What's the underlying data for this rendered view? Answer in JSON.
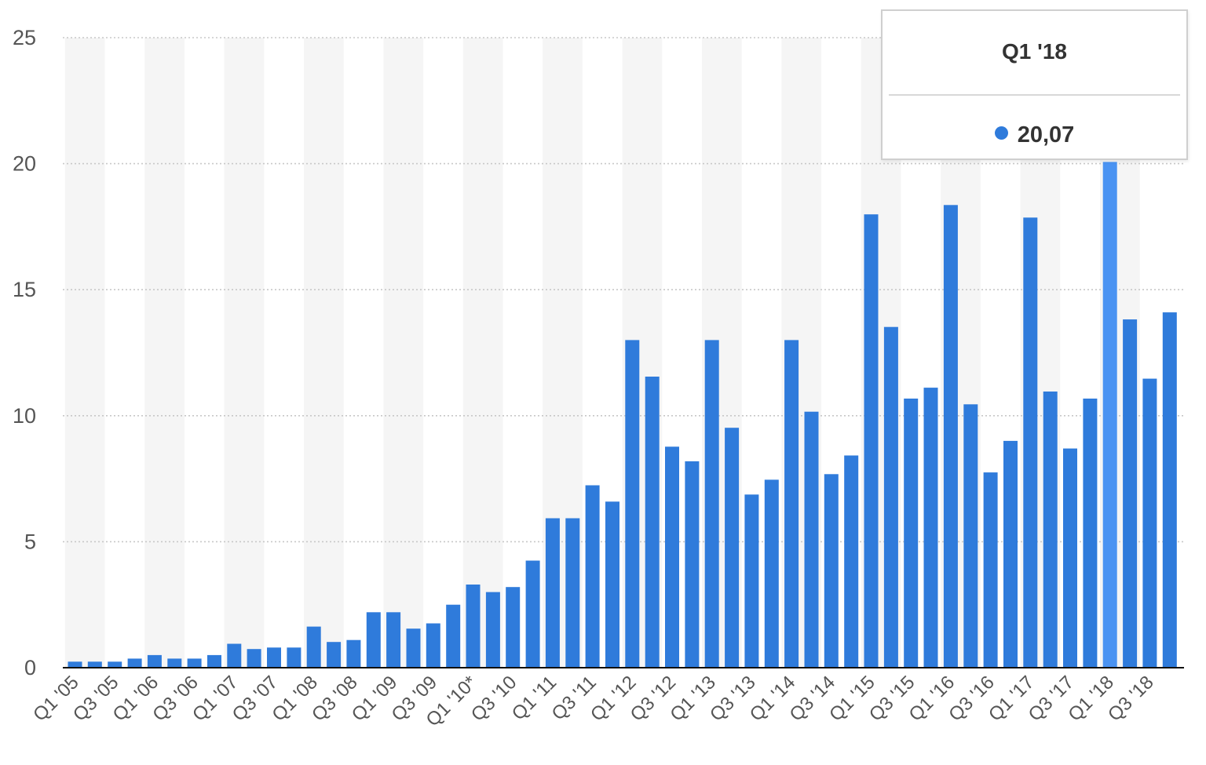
{
  "chart_data": {
    "type": "bar",
    "categories": [
      "Q1 '05",
      "Q2 '05",
      "Q3 '05",
      "Q4 '05",
      "Q1 '06",
      "Q2 '06",
      "Q3 '06",
      "Q4 '06",
      "Q1 '07",
      "Q2 '07",
      "Q3 '07",
      "Q4 '07",
      "Q1 '08",
      "Q2 '08",
      "Q3 '08",
      "Q4 '08",
      "Q1 '09",
      "Q2 '09",
      "Q3 '09",
      "Q4 '09",
      "Q1 '10*",
      "Q2 '10",
      "Q3 '10",
      "Q4 '10",
      "Q1 '11",
      "Q2 '11",
      "Q3 '11",
      "Q4 '11",
      "Q1 '12",
      "Q2 '12",
      "Q3 '12",
      "Q4 '12",
      "Q1 '13",
      "Q2 '13",
      "Q3 '13",
      "Q4 '13",
      "Q1 '14",
      "Q2 '14",
      "Q3 '14",
      "Q4 '14",
      "Q1 '15",
      "Q2 '15",
      "Q3 '15",
      "Q4 '15",
      "Q1 '16",
      "Q2 '16",
      "Q3 '16",
      "Q4 '16",
      "Q1 '17",
      "Q2 '17",
      "Q3 '17",
      "Q4 '17",
      "Q1 '18",
      "Q2 '18",
      "Q3 '18",
      "Q4 '18"
    ],
    "tick_labels": [
      "Q1 '05",
      "Q3 '05",
      "Q1 '06",
      "Q3 '06",
      "Q1 '07",
      "Q3 '07",
      "Q1 '08",
      "Q3 '08",
      "Q1 '09",
      "Q3 '09",
      "Q1 '10*",
      "Q3 '10",
      "Q1 '11",
      "Q3 '11",
      "Q1 '12",
      "Q3 '12",
      "Q1 '13",
      "Q3 '13",
      "Q1 '14",
      "Q3 '14",
      "Q1 '15",
      "Q3 '15",
      "Q1 '16",
      "Q3 '16",
      "Q1 '17",
      "Q3 '17",
      "Q1 '18",
      "Q3 '18"
    ],
    "values": [
      0.24,
      0.24,
      0.24,
      0.36,
      0.5,
      0.36,
      0.36,
      0.5,
      0.95,
      0.74,
      0.8,
      0.8,
      1.63,
      1.02,
      1.1,
      2.2,
      2.2,
      1.55,
      1.76,
      2.5,
      3.3,
      3.0,
      3.2,
      4.25,
      5.93,
      5.93,
      7.24,
      6.59,
      13.0,
      11.55,
      8.77,
      8.19,
      13.0,
      9.52,
      6.87,
      7.46,
      13.0,
      10.16,
      7.68,
      8.42,
      17.99,
      13.52,
      10.68,
      11.11,
      18.36,
      10.45,
      7.75,
      9.0,
      17.86,
      10.96,
      8.7,
      10.68,
      20.07,
      13.82,
      11.47,
      14.1
    ],
    "highlighted_index": 52,
    "yticks": [
      0,
      5,
      10,
      15,
      20,
      25
    ],
    "ytick_labels": [
      "0",
      "5",
      "10",
      "15",
      "20",
      "25"
    ],
    "ylim": [
      0,
      25
    ],
    "title": "",
    "xlabel": "",
    "ylabel": "",
    "grid": true,
    "legend": false,
    "colors": {
      "bar": "#2f7bdb",
      "bar_highlight": "#4a93f2",
      "band": "#f5f5f5",
      "grid": "#c8c8c8",
      "axis_line": "#111111",
      "tick_text": "#555555"
    }
  },
  "tooltip": {
    "title": "Q1 '18",
    "value": "20,07",
    "marker_color": "#2f7bdb"
  }
}
